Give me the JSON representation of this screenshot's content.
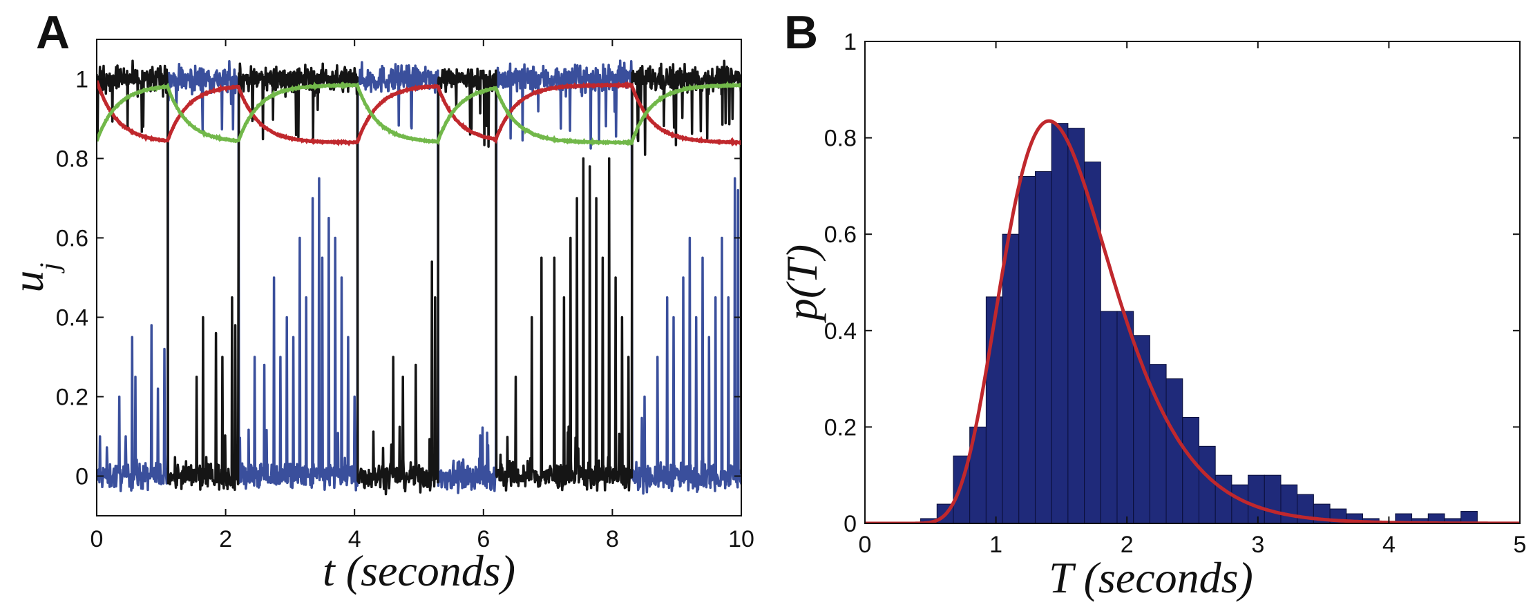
{
  "figure": {
    "panels": [
      "A",
      "B"
    ]
  },
  "chart_data": [
    {
      "panel": "A",
      "type": "line",
      "title": "",
      "xlabel": "t (seconds)",
      "ylabel": "u_j",
      "ylabel_main": "u",
      "ylabel_sub": "j",
      "xlim": [
        0,
        10
      ],
      "ylim": [
        -0.1,
        1.1
      ],
      "xticks": [
        0,
        2,
        4,
        6,
        8,
        10
      ],
      "yticks": [
        0,
        0.2,
        0.4,
        0.6,
        0.8,
        1
      ],
      "switch_times": [
        1.1,
        2.2,
        4.05,
        5.3,
        6.2,
        8.3
      ],
      "series": [
        {
          "name": "black",
          "color": "#151515",
          "description": "noisy activity, high (~1) during black-dominant intervals, low (~0) otherwise",
          "high_intervals": [
            [
              0,
              1.1
            ],
            [
              2.2,
              4.05
            ],
            [
              5.3,
              6.2
            ],
            [
              8.3,
              10
            ]
          ],
          "spikes": [
            [
              1.55,
              0.25
            ],
            [
              1.65,
              0.4
            ],
            [
              1.85,
              0.36
            ],
            [
              1.95,
              0.3
            ],
            [
              2.1,
              0.45
            ],
            [
              2.15,
              0.38
            ],
            [
              2.2,
              0.64
            ],
            [
              4.6,
              0.3
            ],
            [
              4.75,
              0.25
            ],
            [
              4.95,
              0.28
            ],
            [
              5.2,
              0.54
            ],
            [
              5.25,
              0.45
            ],
            [
              6.5,
              0.25
            ],
            [
              6.75,
              0.4
            ],
            [
              6.9,
              0.55
            ],
            [
              7.1,
              0.55
            ],
            [
              7.25,
              0.45
            ],
            [
              7.35,
              0.6
            ],
            [
              7.45,
              0.7
            ],
            [
              7.55,
              0.8
            ],
            [
              7.65,
              0.78
            ],
            [
              7.75,
              0.7
            ],
            [
              7.85,
              0.55
            ],
            [
              7.95,
              0.8
            ],
            [
              8.05,
              0.5
            ],
            [
              8.15,
              0.4
            ],
            [
              8.25,
              0.3
            ]
          ]
        },
        {
          "name": "blue",
          "color": "#3a4f9c",
          "description": "noisy activity, high (~1) during blue-dominant intervals, low (~0) otherwise",
          "high_intervals": [
            [
              1.1,
              2.2
            ],
            [
              4.05,
              5.3
            ],
            [
              6.2,
              8.3
            ]
          ],
          "spikes": [
            [
              0.05,
              0.1
            ],
            [
              0.35,
              0.2
            ],
            [
              0.45,
              0.1
            ],
            [
              0.55,
              0.35
            ],
            [
              0.6,
              0.25
            ],
            [
              0.85,
              0.38
            ],
            [
              0.95,
              0.22
            ],
            [
              1.05,
              0.32
            ],
            [
              2.45,
              0.3
            ],
            [
              2.6,
              0.28
            ],
            [
              2.75,
              0.5
            ],
            [
              2.85,
              0.3
            ],
            [
              2.95,
              0.4
            ],
            [
              3.05,
              0.35
            ],
            [
              3.15,
              0.6
            ],
            [
              3.25,
              0.45
            ],
            [
              3.35,
              0.7
            ],
            [
              3.45,
              0.75
            ],
            [
              3.5,
              0.55
            ],
            [
              3.6,
              0.65
            ],
            [
              3.7,
              0.6
            ],
            [
              3.8,
              0.5
            ],
            [
              3.9,
              0.35
            ],
            [
              4.0,
              0.2
            ],
            [
              8.5,
              0.2
            ],
            [
              8.7,
              0.3
            ],
            [
              8.85,
              0.45
            ],
            [
              8.95,
              0.4
            ],
            [
              9.1,
              0.5
            ],
            [
              9.2,
              0.6
            ],
            [
              9.3,
              0.4
            ],
            [
              9.4,
              0.55
            ],
            [
              9.5,
              0.35
            ],
            [
              9.6,
              0.45
            ],
            [
              9.7,
              0.6
            ],
            [
              9.8,
              0.45
            ],
            [
              9.9,
              0.75
            ],
            [
              9.95,
              0.72
            ]
          ]
        },
        {
          "name": "red",
          "color": "#c0282d",
          "description": "slow adaptation variable: decays toward ~0.84 while black is active, recovers toward ~0.98 otherwise",
          "start": 1.0,
          "low": 0.84,
          "high": 0.985,
          "tau": 0.7,
          "decay_intervals": [
            [
              0,
              1.1
            ],
            [
              2.2,
              4.05
            ],
            [
              5.3,
              6.2
            ],
            [
              8.3,
              10
            ]
          ]
        },
        {
          "name": "green",
          "color": "#72b84a",
          "description": "slow adaptation variable: decays toward ~0.84 while blue is active, recovers toward ~0.98 otherwise",
          "start": 0.84,
          "low": 0.84,
          "high": 0.985,
          "tau": 0.7,
          "decay_intervals": [
            [
              1.1,
              2.2
            ],
            [
              4.05,
              5.3
            ],
            [
              6.2,
              8.3
            ]
          ]
        }
      ]
    },
    {
      "panel": "B",
      "type": "bar",
      "title": "",
      "xlabel": "T (seconds)",
      "ylabel": "p(T)",
      "xlim": [
        0,
        5
      ],
      "ylim": [
        0,
        1
      ],
      "xticks": [
        0,
        1,
        2,
        3,
        4,
        5
      ],
      "yticks": [
        0,
        0.2,
        0.4,
        0.6,
        0.8,
        1
      ],
      "bin_width": 0.125,
      "bin_start": 0.425,
      "values": [
        0.01,
        0.04,
        0.14,
        0.2,
        0.47,
        0.6,
        0.72,
        0.73,
        0.83,
        0.82,
        0.75,
        0.44,
        0.44,
        0.39,
        0.33,
        0.3,
        0.22,
        0.16,
        0.1,
        0.08,
        0.1,
        0.1,
        0.08,
        0.06,
        0.04,
        0.03,
        0.02,
        0.01,
        0.0,
        0.02,
        0.01,
        0.02,
        0.01,
        0.025
      ],
      "bar_color": "#1f2a7a",
      "fit": {
        "name": "fitted density",
        "color": "#c0282d",
        "type": "lognormal-like",
        "peak_x": 1.45,
        "peak_y": 0.835,
        "mu": 0.43,
        "sigma": 0.3
      }
    }
  ]
}
